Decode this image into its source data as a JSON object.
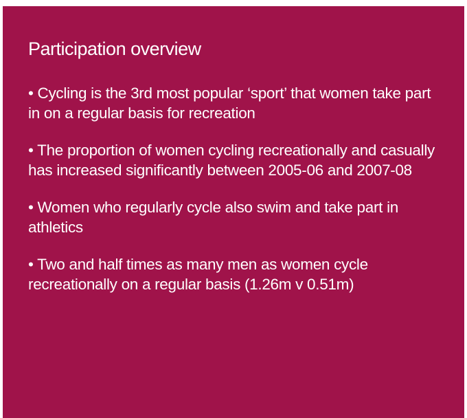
{
  "header": {
    "title": "Participation overview"
  },
  "bullets": [
    "• Cycling is the 3rd most popular ‘sport’ that women take part in on a regular basis for recreation",
    "• The proportion of women cycling recreationally and casually has increased significantly between 2005-06 and 2007-08",
    "• Women who regularly cycle also swim and take part in athletics",
    "• Two and half times as many men as women cycle recreationally on a regular basis (1.26m v 0.51m)"
  ]
}
